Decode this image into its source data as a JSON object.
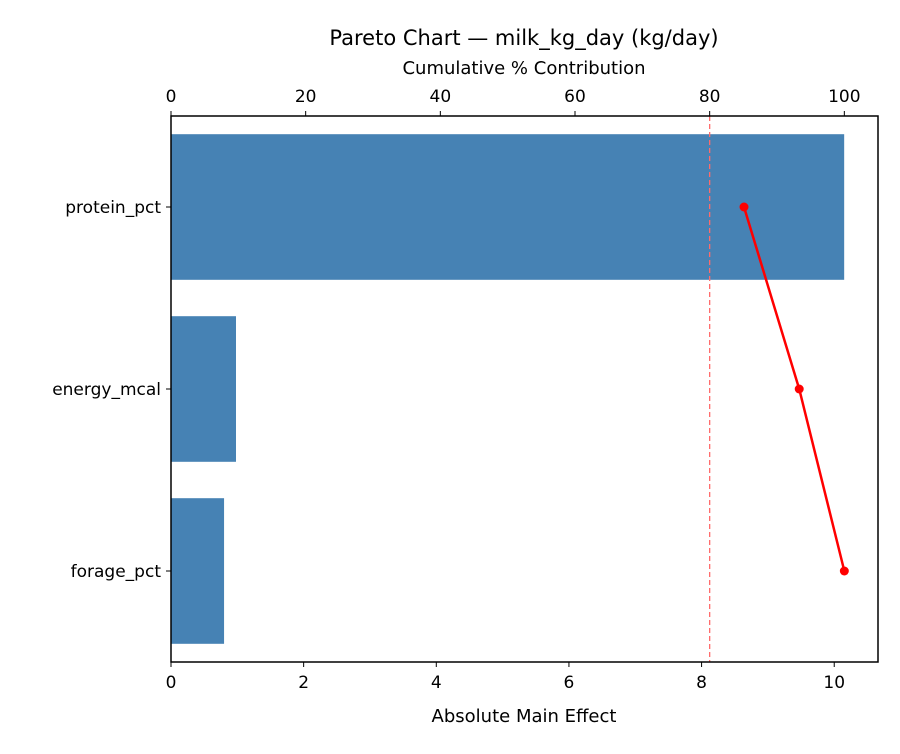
{
  "chart_data": {
    "type": "bar",
    "orientation": "horizontal",
    "title": "Pareto Chart — milk_kg_day (kg/day)",
    "xlabel": "Absolute Main Effect",
    "x2label": "Cumulative % Contribution",
    "categories": [
      "protein_pct",
      "energy_mcal",
      "forage_pct"
    ],
    "values": [
      10.15,
      0.98,
      0.8
    ],
    "cumulative_pct": [
      85.1,
      93.3,
      100.0
    ],
    "threshold_pct": 80,
    "xlim": [
      0,
      10.66
    ],
    "x2lim": [
      0,
      105
    ],
    "xticks": [
      0,
      2,
      4,
      6,
      8,
      10
    ],
    "x2ticks": [
      0,
      20,
      40,
      60,
      80,
      100
    ],
    "bar_color": "#4682b4",
    "line_color": "#ff0000",
    "threshold_color": "#ff6b6b",
    "grid": false
  }
}
